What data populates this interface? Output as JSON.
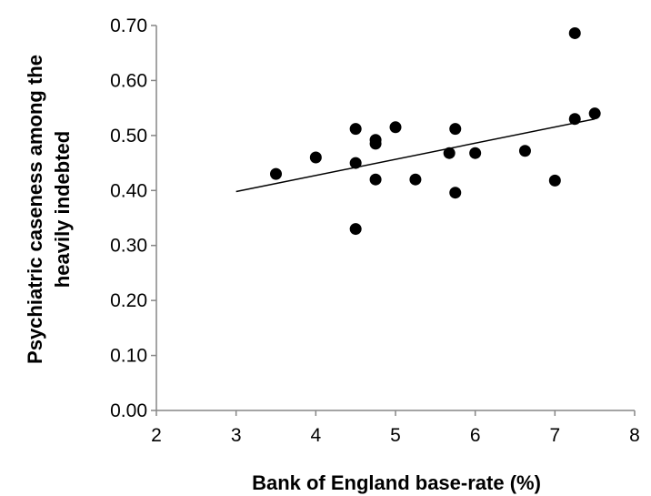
{
  "chart_data": {
    "type": "scatter",
    "xlabel": "Bank of England base-rate (%)",
    "ylabel_lines": [
      "Psychiatric caseness among the",
      "heavily indebted"
    ],
    "xlim": [
      2,
      8
    ],
    "ylim": [
      0,
      0.7
    ],
    "x_ticks": [
      {
        "value": 2,
        "label": "2"
      },
      {
        "value": 3,
        "label": "3"
      },
      {
        "value": 4,
        "label": "4"
      },
      {
        "value": 5,
        "label": "5"
      },
      {
        "value": 6,
        "label": "6"
      },
      {
        "value": 7,
        "label": "7"
      },
      {
        "value": 8,
        "label": "8"
      }
    ],
    "y_ticks": [
      {
        "value": 0,
        "label": "0.00"
      },
      {
        "value": 0.1,
        "label": "0.10"
      },
      {
        "value": 0.2,
        "label": "0.20"
      },
      {
        "value": 0.3,
        "label": "0.30"
      },
      {
        "value": 0.4,
        "label": "0.40"
      },
      {
        "value": 0.5,
        "label": "0.50"
      },
      {
        "value": 0.6,
        "label": "0.60"
      },
      {
        "value": 0.7,
        "label": "0.70"
      }
    ],
    "points": [
      {
        "x": 3.5,
        "y": 0.43
      },
      {
        "x": 4.0,
        "y": 0.46
      },
      {
        "x": 4.5,
        "y": 0.512
      },
      {
        "x": 4.5,
        "y": 0.45
      },
      {
        "x": 4.5,
        "y": 0.33
      },
      {
        "x": 4.75,
        "y": 0.492
      },
      {
        "x": 4.75,
        "y": 0.485
      },
      {
        "x": 4.75,
        "y": 0.42
      },
      {
        "x": 5.0,
        "y": 0.515
      },
      {
        "x": 5.25,
        "y": 0.42
      },
      {
        "x": 5.675,
        "y": 0.468
      },
      {
        "x": 5.75,
        "y": 0.512
      },
      {
        "x": 5.75,
        "y": 0.396
      },
      {
        "x": 6.0,
        "y": 0.468
      },
      {
        "x": 6.625,
        "y": 0.472
      },
      {
        "x": 7.0,
        "y": 0.418
      },
      {
        "x": 7.25,
        "y": 0.686
      },
      {
        "x": 7.25,
        "y": 0.53
      },
      {
        "x": 7.5,
        "y": 0.54
      }
    ],
    "trendline": {
      "x1": 3.0,
      "y1": 0.398,
      "x2": 7.5,
      "y2": 0.53
    },
    "grid": false,
    "legend": "none",
    "marker_color": "#000000",
    "line_color": "#000000"
  }
}
